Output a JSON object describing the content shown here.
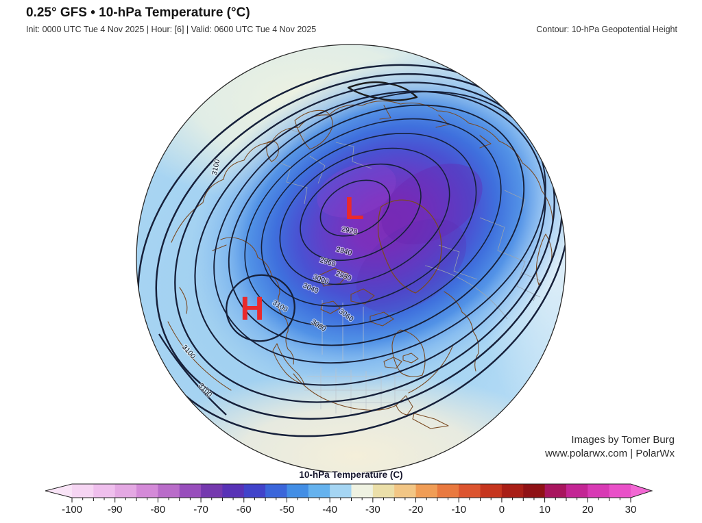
{
  "header": {
    "title": "0.25° GFS • 10-hPa Temperature (°C)",
    "subtitle": "Init: 0000 UTC Tue 4 Nov 2025 | Hour: [6] | Valid: 0600 UTC Tue 4 Nov 2025",
    "contour_note": "Contour: 10-hPa Geopotential Height"
  },
  "map": {
    "projection": "Northern Hemisphere orthographic globe",
    "low_marker": "L",
    "high_marker": "H",
    "contour_labels": [
      {
        "text": "2920"
      },
      {
        "text": "2940"
      },
      {
        "text": "2960"
      },
      {
        "text": "2980"
      },
      {
        "text": "3000"
      },
      {
        "text": "3040"
      },
      {
        "text": "3060"
      },
      {
        "text": "3080"
      },
      {
        "text": "3100"
      },
      {
        "text": "3100"
      },
      {
        "text": "3100"
      },
      {
        "text": "3100"
      }
    ],
    "palette": {
      "marker_red": "#e92a2c",
      "contour_line": "#16203a",
      "coastline_brown": "#7a4a22",
      "border_gray": "#9aa4ae",
      "state_line_gray": "#bcc3cb",
      "vortex_core_purple": "#7d2eb8",
      "ocean_light_blue": "#a8d4f2"
    }
  },
  "attribution": {
    "line1": "Images by Tomer Burg",
    "line2": "www.polarwx.com | PolarWx"
  },
  "colorbar": {
    "label": "10-hPa Temperature (C)",
    "range_min": -100,
    "range_max": 30,
    "tick_step": 10,
    "tick_labels": [
      "-100",
      "-90",
      "-80",
      "-70",
      "-60",
      "-50",
      "-40",
      "-30",
      "-20",
      "-10",
      "0",
      "10",
      "20",
      "30"
    ],
    "segment_colors": [
      "#f6d5f3",
      "#efbfed",
      "#e4a8e3",
      "#d48ad8",
      "#b96cc9",
      "#984ebc",
      "#7539ae",
      "#5832b6",
      "#4143ca",
      "#3b66da",
      "#438ee5",
      "#65b2ee",
      "#a5d5f3",
      "#eff2e2",
      "#ebdfa9",
      "#f2c685",
      "#f09d56",
      "#e9793f",
      "#dc542f",
      "#c6351e",
      "#a91e16",
      "#8f1115",
      "#a8155e",
      "#c32594",
      "#d83ab4",
      "#e950c8"
    ],
    "arrow_left_color": "#f9e4f7",
    "arrow_right_color": "#f267d3"
  }
}
